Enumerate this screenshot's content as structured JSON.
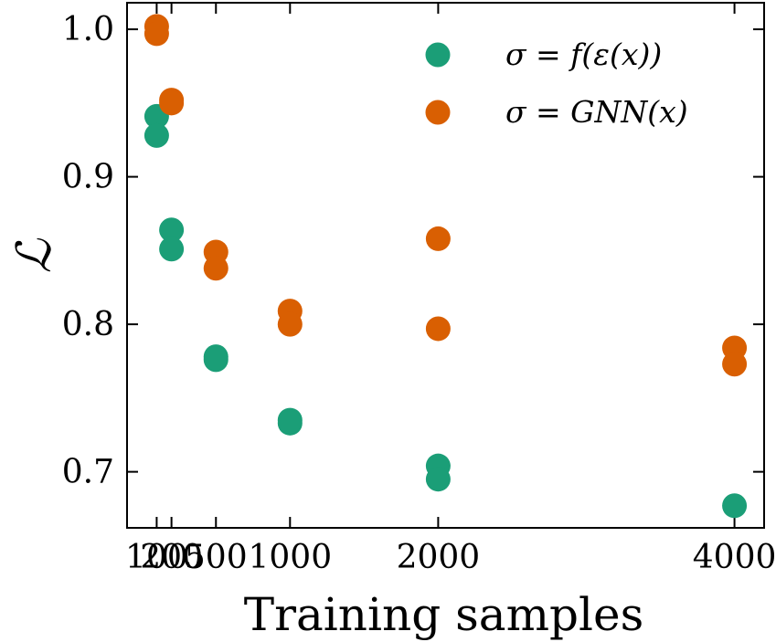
{
  "chart_data": {
    "type": "scatter",
    "xlabel": "Training samples",
    "ylabel": "ℒ",
    "xlim": [
      -100,
      4200
    ],
    "ylim": [
      0.662,
      1.018
    ],
    "xticks": [
      100,
      200,
      500,
      1000,
      2000,
      4000
    ],
    "xtick_labels": [
      "100",
      "200",
      "500",
      "1000",
      "2000",
      "4000"
    ],
    "yticks": [
      0.7,
      0.8,
      0.9,
      1.0
    ],
    "ytick_labels": [
      "0.7",
      "0.8",
      "0.9",
      "1.0"
    ],
    "legend_position": "top-right",
    "grid": false,
    "series": [
      {
        "name": "σ = f(ε(x))",
        "color": "#1b9e77",
        "points": [
          {
            "x": 100,
            "y": 0.941
          },
          {
            "x": 100,
            "y": 0.928
          },
          {
            "x": 200,
            "y": 0.864
          },
          {
            "x": 200,
            "y": 0.851
          },
          {
            "x": 500,
            "y": 0.778
          },
          {
            "x": 500,
            "y": 0.776
          },
          {
            "x": 1000,
            "y": 0.735
          },
          {
            "x": 1000,
            "y": 0.733
          },
          {
            "x": 2000,
            "y": 0.704
          },
          {
            "x": 2000,
            "y": 0.695
          },
          {
            "x": 4000,
            "y": 0.677
          }
        ]
      },
      {
        "name": "σ = GNN(x)",
        "color": "#d95f02",
        "points": [
          {
            "x": 100,
            "y": 1.002
          },
          {
            "x": 100,
            "y": 0.997
          },
          {
            "x": 200,
            "y": 0.952
          },
          {
            "x": 200,
            "y": 0.95
          },
          {
            "x": 500,
            "y": 0.849
          },
          {
            "x": 500,
            "y": 0.838
          },
          {
            "x": 1000,
            "y": 0.809
          },
          {
            "x": 1000,
            "y": 0.8
          },
          {
            "x": 2000,
            "y": 0.858
          },
          {
            "x": 2000,
            "y": 0.797
          },
          {
            "x": 4000,
            "y": 0.784
          },
          {
            "x": 4000,
            "y": 0.773
          }
        ]
      }
    ]
  }
}
